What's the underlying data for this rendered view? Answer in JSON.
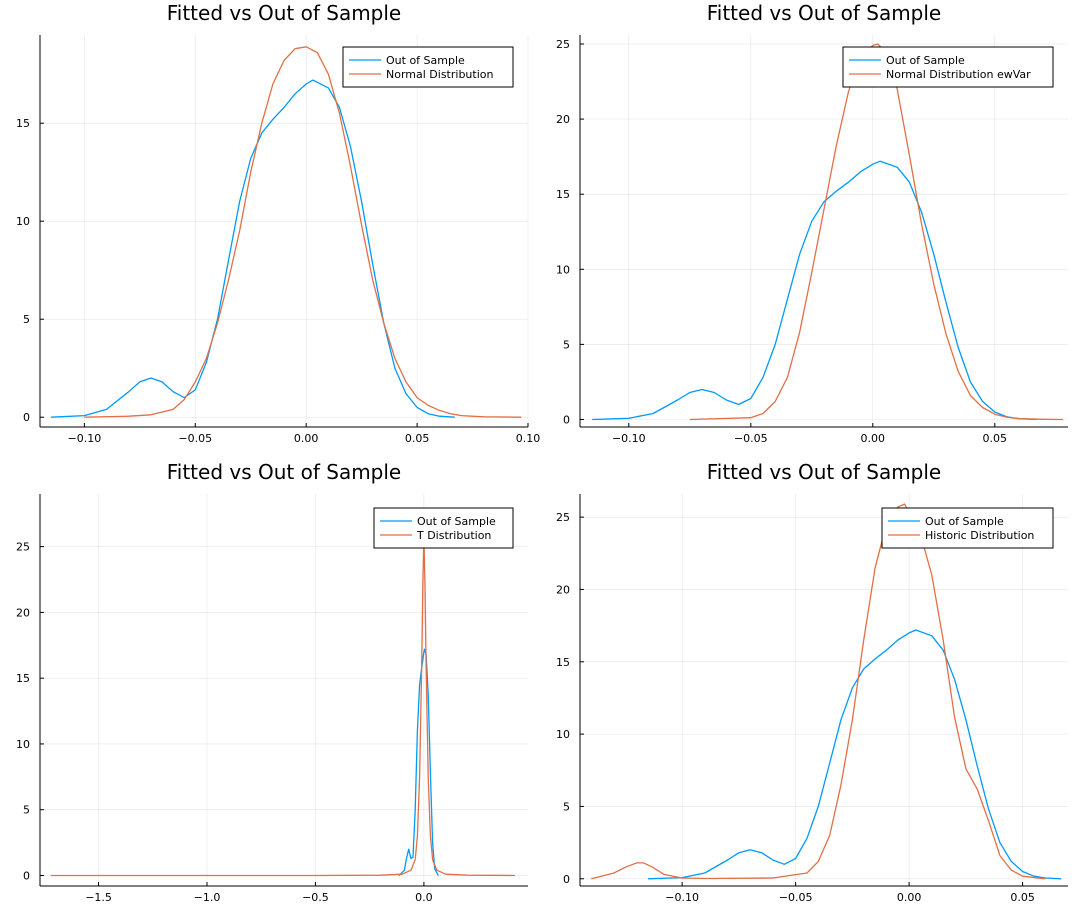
{
  "colors": {
    "series_1": "#009AF9",
    "series_2": "#E26F46"
  },
  "chart_data": [
    {
      "type": "line",
      "title": "Fitted vs Out of Sample",
      "xlim": [
        -0.12,
        0.1
      ],
      "ylim": [
        -0.5,
        19.5
      ],
      "xticks": [
        -0.1,
        -0.05,
        0.0,
        0.05,
        0.1
      ],
      "xtick_labels": [
        "−0.10",
        "−0.05",
        "0.00",
        "0.05",
        "0.10"
      ],
      "yticks": [
        0,
        5,
        10,
        15
      ],
      "ytick_labels": [
        "0",
        "5",
        "10",
        "15"
      ],
      "grid": true,
      "legend_position": "top-right",
      "series": [
        {
          "name": "Out of Sample",
          "color": "#009AF9",
          "x": [
            -0.115,
            -0.1,
            -0.09,
            -0.08,
            -0.075,
            -0.07,
            -0.065,
            -0.06,
            -0.055,
            -0.05,
            -0.045,
            -0.04,
            -0.035,
            -0.03,
            -0.025,
            -0.02,
            -0.015,
            -0.01,
            -0.005,
            0.0,
            0.003,
            0.01,
            0.015,
            0.02,
            0.025,
            0.03,
            0.035,
            0.04,
            0.045,
            0.05,
            0.055,
            0.06,
            0.067
          ],
          "y": [
            0,
            0.08,
            0.4,
            1.3,
            1.8,
            2.0,
            1.8,
            1.3,
            1.0,
            1.4,
            2.8,
            5.0,
            8.0,
            11.0,
            13.2,
            14.5,
            15.2,
            15.8,
            16.5,
            17.0,
            17.2,
            16.8,
            15.8,
            13.8,
            11.0,
            7.8,
            4.8,
            2.5,
            1.2,
            0.5,
            0.18,
            0.05,
            0
          ]
        },
        {
          "name": "Normal Distribution",
          "color": "#E26F46",
          "x": [
            -0.1,
            -0.08,
            -0.07,
            -0.06,
            -0.055,
            -0.05,
            -0.045,
            -0.04,
            -0.035,
            -0.03,
            -0.025,
            -0.02,
            -0.015,
            -0.01,
            -0.005,
            0.0,
            0.005,
            0.01,
            0.015,
            0.02,
            0.025,
            0.03,
            0.035,
            0.04,
            0.045,
            0.05,
            0.055,
            0.06,
            0.065,
            0.07,
            0.08,
            0.097
          ],
          "y": [
            0,
            0.05,
            0.12,
            0.4,
            0.9,
            1.8,
            3.0,
            4.8,
            7.0,
            9.5,
            12.5,
            15.0,
            17.0,
            18.2,
            18.8,
            18.9,
            18.6,
            17.5,
            15.5,
            12.8,
            9.8,
            7.0,
            4.8,
            3.0,
            1.8,
            1.0,
            0.6,
            0.35,
            0.18,
            0.08,
            0.02,
            0
          ]
        }
      ]
    },
    {
      "type": "line",
      "title": "Fitted vs Out of Sample",
      "xlim": [
        -0.12,
        0.08
      ],
      "ylim": [
        -0.5,
        25.6
      ],
      "xticks": [
        -0.1,
        -0.05,
        0.0,
        0.05
      ],
      "xtick_labels": [
        "−0.10",
        "−0.05",
        "0.00",
        "0.05"
      ],
      "yticks": [
        0,
        5,
        10,
        15,
        20,
        25
      ],
      "ytick_labels": [
        "0",
        "5",
        "10",
        "15",
        "20",
        "25"
      ],
      "grid": true,
      "legend_position": "top-right",
      "series": [
        {
          "name": "Out of Sample",
          "color": "#009AF9",
          "x": [
            -0.115,
            -0.1,
            -0.09,
            -0.08,
            -0.075,
            -0.07,
            -0.065,
            -0.06,
            -0.055,
            -0.05,
            -0.045,
            -0.04,
            -0.035,
            -0.03,
            -0.025,
            -0.02,
            -0.015,
            -0.01,
            -0.005,
            0.0,
            0.003,
            0.01,
            0.015,
            0.02,
            0.025,
            0.03,
            0.035,
            0.04,
            0.045,
            0.05,
            0.055,
            0.06,
            0.067
          ],
          "y": [
            0,
            0.08,
            0.4,
            1.3,
            1.8,
            2.0,
            1.8,
            1.3,
            1.0,
            1.4,
            2.8,
            5.0,
            8.0,
            11.0,
            13.2,
            14.5,
            15.2,
            15.8,
            16.5,
            17.0,
            17.2,
            16.8,
            15.8,
            13.8,
            11.0,
            7.8,
            4.8,
            2.5,
            1.2,
            0.5,
            0.18,
            0.05,
            0
          ]
        },
        {
          "name": "Normal Distribution ewVar",
          "color": "#E26F46",
          "x": [
            -0.075,
            -0.05,
            -0.045,
            -0.04,
            -0.035,
            -0.03,
            -0.025,
            -0.02,
            -0.015,
            -0.01,
            -0.005,
            0.0,
            0.002,
            0.005,
            0.01,
            0.015,
            0.02,
            0.025,
            0.03,
            0.035,
            0.04,
            0.045,
            0.05,
            0.055,
            0.06,
            0.07,
            0.078
          ],
          "y": [
            0,
            0.12,
            0.4,
            1.2,
            2.8,
            5.8,
            9.8,
            14.0,
            18.2,
            21.8,
            24.2,
            24.9,
            25.0,
            24.5,
            22.0,
            17.6,
            13.0,
            9.0,
            5.7,
            3.2,
            1.6,
            0.8,
            0.35,
            0.15,
            0.05,
            0.01,
            0
          ]
        }
      ]
    },
    {
      "type": "line",
      "title": "Fitted vs Out of Sample",
      "xlim": [
        -1.77,
        0.48
      ],
      "ylim": [
        -0.8,
        29
      ],
      "xticks": [
        -1.5,
        -1.0,
        -0.5,
        0.0
      ],
      "xtick_labels": [
        "−1.5",
        "−1.0",
        "−0.5",
        "0.0"
      ],
      "yticks": [
        0,
        5,
        10,
        15,
        20,
        25
      ],
      "ytick_labels": [
        "0",
        "5",
        "10",
        "15",
        "20",
        "25"
      ],
      "grid": true,
      "legend_position": "top-right",
      "series": [
        {
          "name": "Out of Sample",
          "color": "#009AF9",
          "x": [
            -0.115,
            -0.09,
            -0.08,
            -0.07,
            -0.06,
            -0.05,
            -0.04,
            -0.03,
            -0.02,
            -0.01,
            0.0,
            0.003,
            0.01,
            0.02,
            0.03,
            0.04,
            0.05,
            0.067
          ],
          "y": [
            0,
            0.4,
            1.3,
            2.0,
            1.3,
            1.4,
            5.0,
            11.0,
            14.5,
            15.8,
            17.0,
            17.2,
            16.8,
            13.8,
            7.8,
            2.5,
            0.5,
            0
          ]
        },
        {
          "name": "T Distribution",
          "color": "#E26F46",
          "x": [
            -1.72,
            -1.0,
            -0.5,
            -0.2,
            -0.1,
            -0.06,
            -0.04,
            -0.03,
            -0.02,
            -0.01,
            -0.005,
            0.0,
            0.005,
            0.01,
            0.02,
            0.03,
            0.04,
            0.06,
            0.1,
            0.2,
            0.42
          ],
          "y": [
            0,
            0,
            0,
            0.02,
            0.1,
            0.4,
            1.2,
            3.0,
            7.5,
            16.0,
            22.0,
            25.8,
            22.0,
            16.0,
            7.5,
            3.0,
            1.2,
            0.4,
            0.1,
            0.02,
            0
          ]
        }
      ]
    },
    {
      "type": "line",
      "title": "Fitted vs Out of Sample",
      "xlim": [
        -0.145,
        0.07
      ],
      "ylim": [
        -0.5,
        26.6
      ],
      "xticks": [
        -0.1,
        -0.05,
        0.0,
        0.05
      ],
      "xtick_labels": [
        "−0.10",
        "−0.05",
        "0.00",
        "0.05"
      ],
      "yticks": [
        0,
        5,
        10,
        15,
        20,
        25
      ],
      "ytick_labels": [
        "0",
        "5",
        "10",
        "15",
        "20",
        "25"
      ],
      "grid": true,
      "legend_position": "top-right",
      "series": [
        {
          "name": "Out of Sample",
          "color": "#009AF9",
          "x": [
            -0.115,
            -0.1,
            -0.09,
            -0.08,
            -0.075,
            -0.07,
            -0.065,
            -0.06,
            -0.055,
            -0.05,
            -0.045,
            -0.04,
            -0.035,
            -0.03,
            -0.025,
            -0.02,
            -0.015,
            -0.01,
            -0.005,
            0.0,
            0.003,
            0.01,
            0.015,
            0.02,
            0.025,
            0.03,
            0.035,
            0.04,
            0.045,
            0.05,
            0.055,
            0.06,
            0.067
          ],
          "y": [
            0,
            0.08,
            0.4,
            1.3,
            1.8,
            2.0,
            1.8,
            1.3,
            1.0,
            1.4,
            2.8,
            5.0,
            8.0,
            11.0,
            13.2,
            14.5,
            15.2,
            15.8,
            16.5,
            17.0,
            17.2,
            16.8,
            15.8,
            13.8,
            11.0,
            7.8,
            4.8,
            2.5,
            1.2,
            0.5,
            0.18,
            0.05,
            0
          ]
        },
        {
          "name": "Historic Distribution",
          "color": "#E26F46",
          "x": [
            -0.14,
            -0.13,
            -0.125,
            -0.12,
            -0.117,
            -0.113,
            -0.108,
            -0.1,
            -0.09,
            -0.06,
            -0.045,
            -0.04,
            -0.035,
            -0.03,
            -0.025,
            -0.02,
            -0.015,
            -0.01,
            -0.005,
            -0.002,
            0.0,
            0.005,
            0.01,
            0.015,
            0.02,
            0.025,
            0.03,
            0.035,
            0.04,
            0.045,
            0.05,
            0.06
          ],
          "y": [
            0,
            0.4,
            0.8,
            1.1,
            1.1,
            0.8,
            0.3,
            0.05,
            0.02,
            0.05,
            0.4,
            1.2,
            3.0,
            6.5,
            11.0,
            16.5,
            21.5,
            24.5,
            25.7,
            25.9,
            25.3,
            23.8,
            21.0,
            16.5,
            11.2,
            7.6,
            6.2,
            4.0,
            1.6,
            0.6,
            0.18,
            0
          ]
        }
      ]
    }
  ]
}
